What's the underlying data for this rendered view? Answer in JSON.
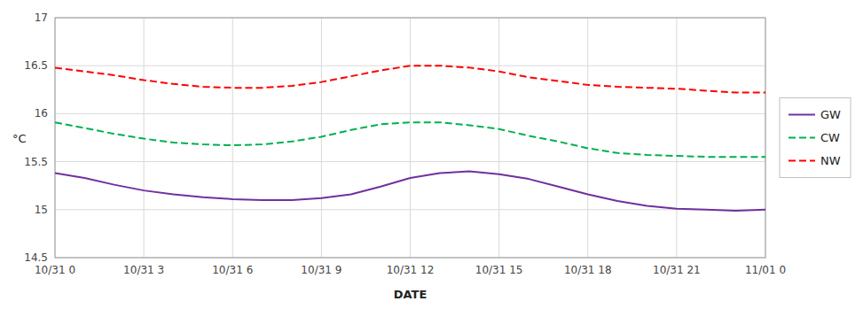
{
  "chart_data": {
    "type": "line",
    "x_label": "DATE",
    "y_label": "°C",
    "x": [
      0,
      1,
      2,
      3,
      4,
      5,
      6,
      7,
      8,
      9,
      10,
      11,
      12,
      13,
      14,
      15,
      16,
      17,
      18,
      19,
      20,
      21,
      22,
      23,
      24
    ],
    "xlim": [
      0,
      24
    ],
    "xticks": [
      {
        "value": 0,
        "label": "10/31 0"
      },
      {
        "value": 3,
        "label": "10/31 3"
      },
      {
        "value": 6,
        "label": "10/31 6"
      },
      {
        "value": 9,
        "label": "10/31 9"
      },
      {
        "value": 12,
        "label": "10/31 12"
      },
      {
        "value": 15,
        "label": "10/31 15"
      },
      {
        "value": 18,
        "label": "10/31 18"
      },
      {
        "value": 21,
        "label": "10/31 21"
      },
      {
        "value": 24,
        "label": "11/01 0"
      }
    ],
    "ylim": [
      14.5,
      17.0
    ],
    "yticks": [
      14.5,
      15,
      15.5,
      16,
      16.5,
      17
    ],
    "grid": true,
    "legend": "right",
    "series": [
      {
        "name": "GW",
        "color": "#7030A0",
        "line_style": "solid",
        "values": [
          15.38,
          15.33,
          15.26,
          15.2,
          15.16,
          15.13,
          15.11,
          15.1,
          15.1,
          15.12,
          15.16,
          15.24,
          15.33,
          15.38,
          15.4,
          15.37,
          15.32,
          15.24,
          15.16,
          15.09,
          15.04,
          15.01,
          15.0,
          14.99,
          15.0
        ]
      },
      {
        "name": "CW",
        "color": "#00B050",
        "line_style": "dashed",
        "values": [
          15.91,
          15.85,
          15.79,
          15.74,
          15.7,
          15.68,
          15.67,
          15.68,
          15.71,
          15.76,
          15.83,
          15.89,
          15.91,
          15.91,
          15.88,
          15.84,
          15.77,
          15.71,
          15.64,
          15.59,
          15.57,
          15.56,
          15.55,
          15.55,
          15.55
        ]
      },
      {
        "name": "NW",
        "color": "#FF0000",
        "line_style": "dashed",
        "values": [
          16.48,
          16.44,
          16.4,
          16.35,
          16.31,
          16.28,
          16.27,
          16.27,
          16.29,
          16.33,
          16.39,
          16.45,
          16.5,
          16.5,
          16.48,
          16.44,
          16.38,
          16.34,
          16.3,
          16.28,
          16.27,
          16.26,
          16.24,
          16.22,
          16.22
        ]
      }
    ]
  }
}
